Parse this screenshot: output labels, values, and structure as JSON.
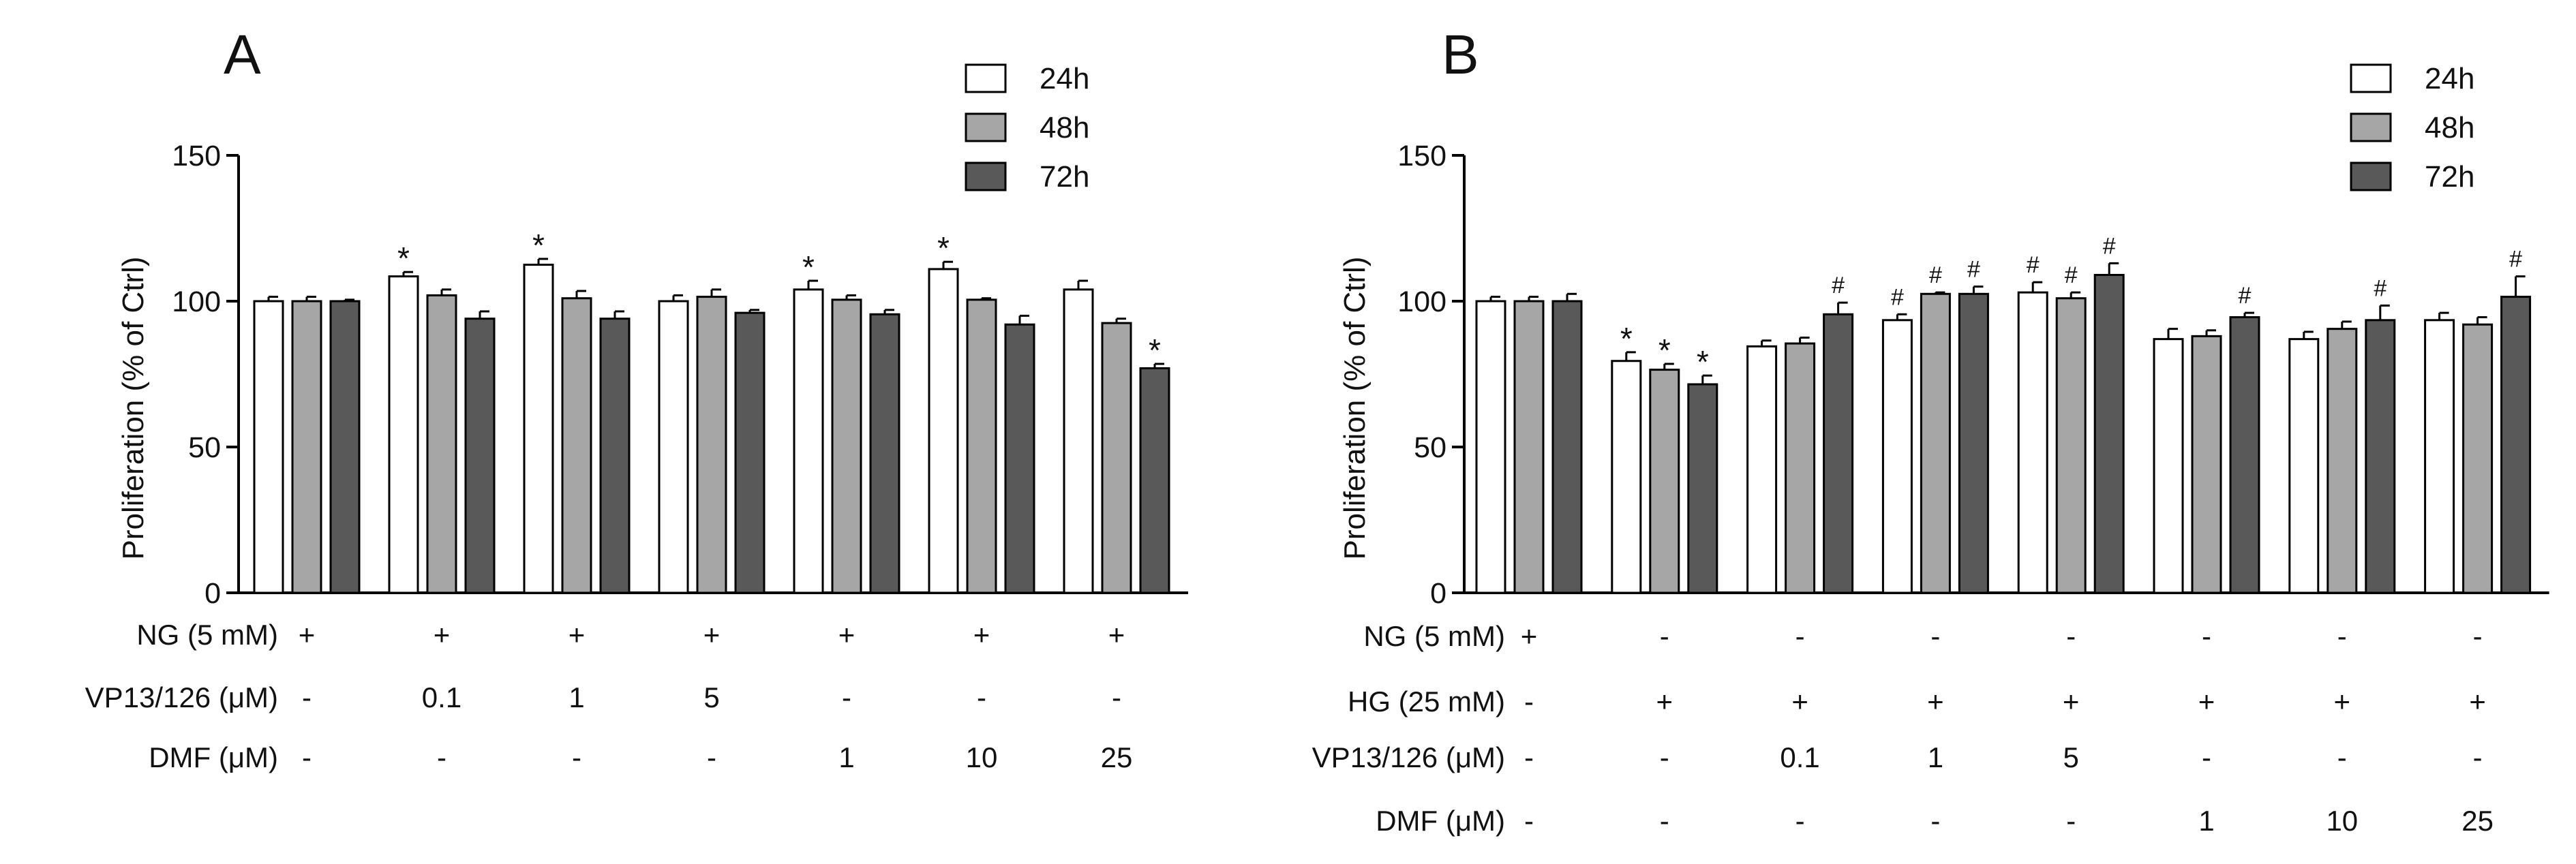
{
  "colors": {
    "24h": "#ffffff",
    "48h": "#a6a6a6",
    "72h": "#595959",
    "stroke": "#000000"
  },
  "chart_data": [
    {
      "type": "bar",
      "panel_label": "A",
      "ylabel": "Proliferation (% of Ctrl)",
      "ylim": [
        0,
        150
      ],
      "yticks": [
        0,
        50,
        100,
        150
      ],
      "legend": [
        "24h",
        "48h",
        "72h"
      ],
      "legend_position": "top-right",
      "groups": 7,
      "series": [
        {
          "name": "24h",
          "values": [
            100,
            108.5,
            112.5,
            100,
            104,
            111,
            104
          ],
          "errors": [
            1.5,
            1.5,
            2,
            2,
            3,
            2.5,
            3
          ],
          "marks": [
            "",
            "*",
            "*",
            "",
            "*",
            "*",
            ""
          ]
        },
        {
          "name": "48h",
          "values": [
            100,
            102,
            101,
            101.5,
            100.5,
            100.5,
            92.5
          ],
          "errors": [
            1.5,
            2,
            2.5,
            2.5,
            1.5,
            0.5,
            1.5
          ],
          "marks": [
            "",
            "",
            "",
            "",
            "",
            "",
            ""
          ]
        },
        {
          "name": "72h",
          "values": [
            100,
            94,
            94,
            96,
            95.5,
            92,
            77
          ],
          "errors": [
            0.5,
            2.5,
            2.5,
            1,
            1.5,
            3,
            1.5
          ],
          "marks": [
            "",
            "",
            "",
            "",
            "",
            "",
            "*"
          ]
        }
      ],
      "conditions": [
        {
          "label": "NG (5 mM)",
          "values": [
            "+",
            "+",
            "+",
            "+",
            "+",
            "+",
            "+"
          ]
        },
        {
          "label": "VP13/126 (μM)",
          "values": [
            "-",
            "0.1",
            "1",
            "5",
            "-",
            "-",
            "-"
          ]
        },
        {
          "label": "DMF (μM)",
          "values": [
            "-",
            "-",
            "-",
            "-",
            "1",
            "10",
            "25"
          ]
        }
      ]
    },
    {
      "type": "bar",
      "panel_label": "B",
      "ylabel": "Proliferation (% of Ctrl)",
      "ylim": [
        0,
        150
      ],
      "yticks": [
        0,
        50,
        100,
        150
      ],
      "legend": [
        "24h",
        "48h",
        "72h"
      ],
      "legend_position": "top-right",
      "groups": 8,
      "series": [
        {
          "name": "24h",
          "values": [
            100,
            79.5,
            84.5,
            93.5,
            103,
            87,
            87,
            93.5
          ],
          "errors": [
            1.5,
            3,
            2,
            2,
            3.5,
            3.5,
            2.5,
            2.5
          ],
          "marks": [
            "",
            "*",
            "",
            "#",
            "#",
            "",
            "",
            ""
          ]
        },
        {
          "name": "48h",
          "values": [
            100,
            76.5,
            85.5,
            102.5,
            101,
            88,
            90.5,
            92
          ],
          "errors": [
            1.5,
            2,
            2,
            0.5,
            2,
            2,
            2.5,
            2.5
          ],
          "marks": [
            "",
            "*",
            "",
            "#",
            "#",
            "",
            "",
            ""
          ]
        },
        {
          "name": "72h",
          "values": [
            100,
            71.5,
            95.5,
            102.5,
            109,
            94.5,
            93.5,
            101.5
          ],
          "errors": [
            2.5,
            3,
            4,
            2.5,
            4,
            1.5,
            5,
            7
          ],
          "marks": [
            "",
            "*",
            "#",
            "#",
            "#",
            "#",
            "#",
            "#"
          ]
        }
      ],
      "conditions": [
        {
          "label": "NG (5 mM)",
          "values": [
            "+",
            "-",
            "-",
            "-",
            "-",
            "-",
            "-",
            "-"
          ]
        },
        {
          "label": "HG (25 mM)",
          "values": [
            "-",
            "+",
            "+",
            "+",
            "+",
            "+",
            "+",
            "+"
          ]
        },
        {
          "label": "VP13/126 (μM)",
          "values": [
            "-",
            "-",
            "0.1",
            "1",
            "5",
            "-",
            "-",
            "-"
          ]
        },
        {
          "label": "DMF (μM)",
          "values": [
            "-",
            "-",
            "-",
            "-",
            "-",
            "1",
            "10",
            "25"
          ]
        }
      ]
    }
  ]
}
